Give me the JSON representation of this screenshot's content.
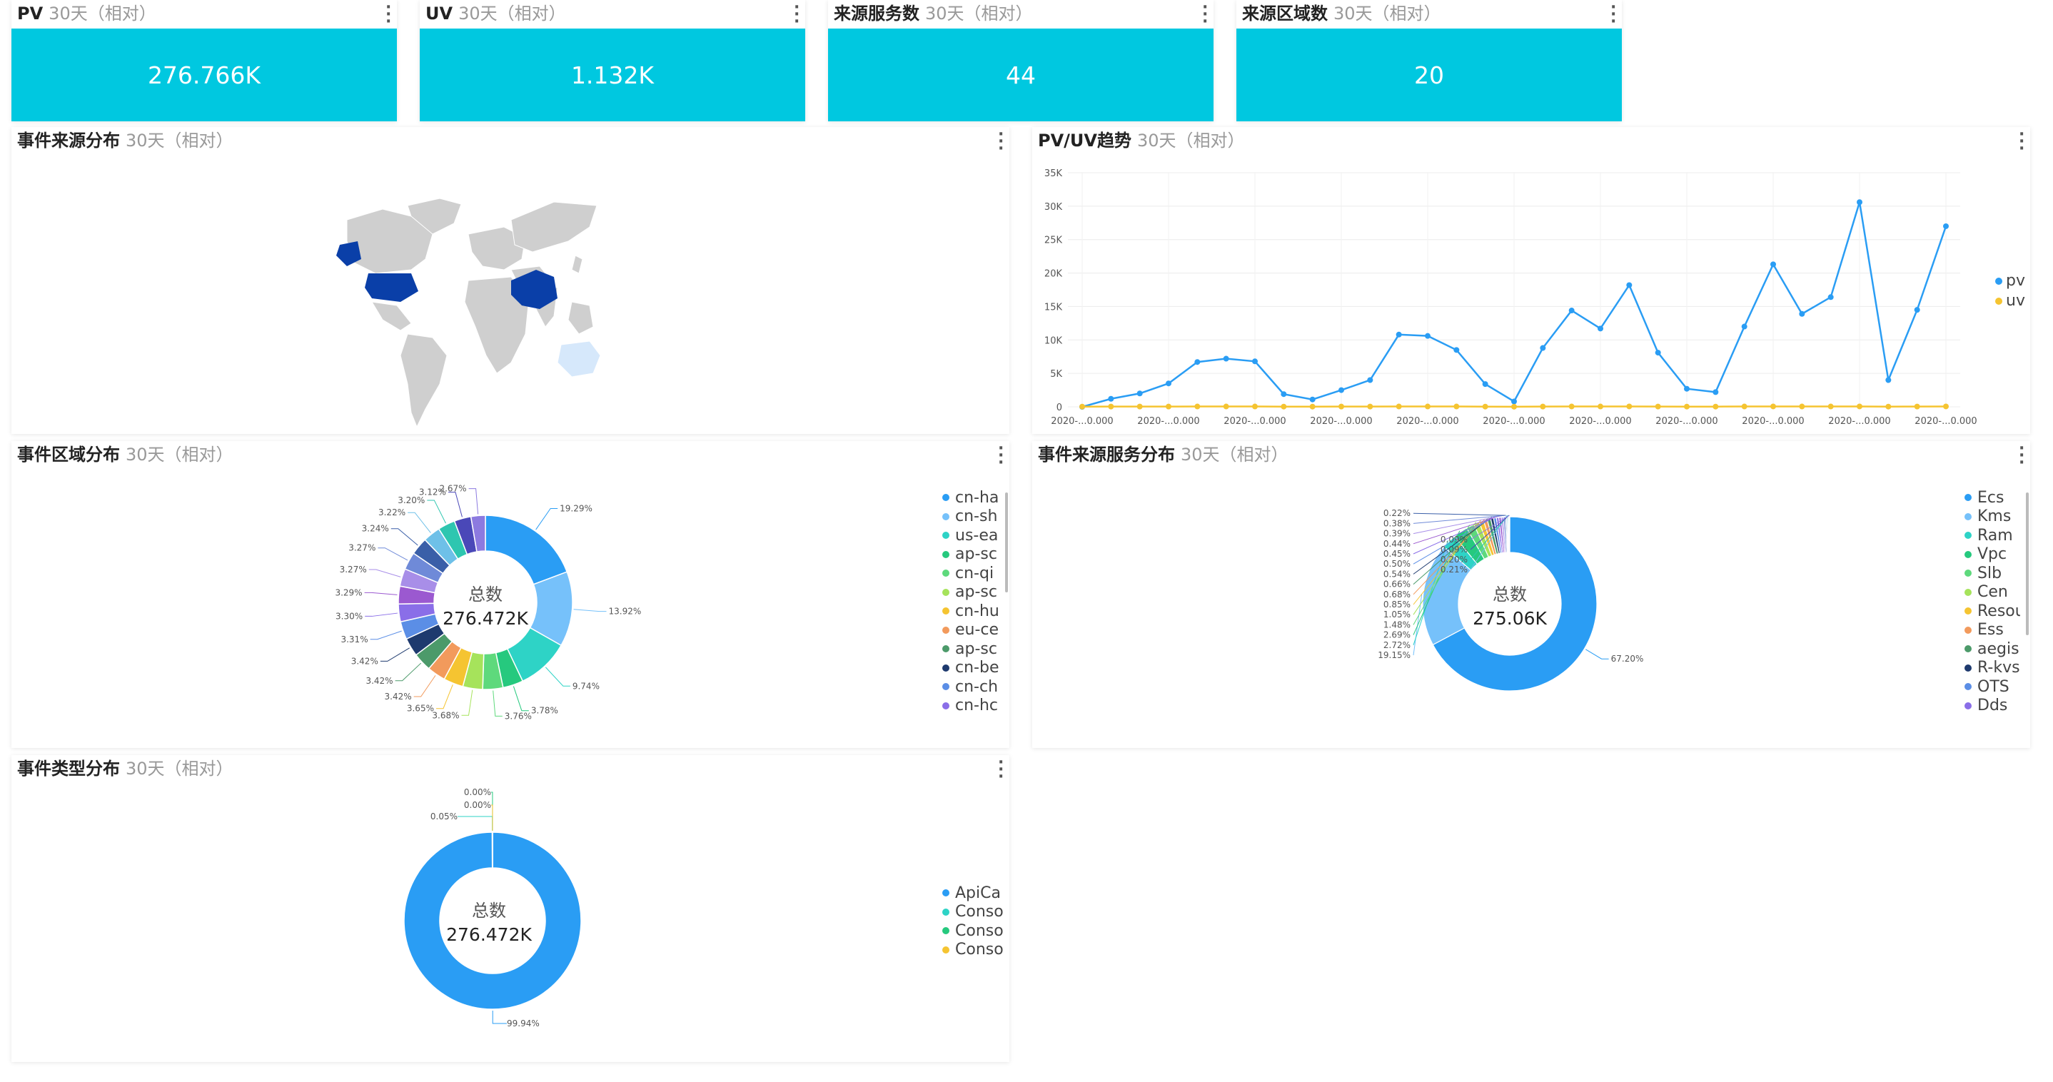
{
  "kpis": [
    {
      "title": "PV",
      "sub": "30天（相对）",
      "value": "276.766K"
    },
    {
      "title": "UV",
      "sub": "30天（相对）",
      "value": "1.132K"
    },
    {
      "title": "来源服务数",
      "sub": "30天（相对）",
      "value": "44"
    },
    {
      "title": "来源区域数",
      "sub": "30天（相对）",
      "value": "20"
    }
  ],
  "panels": {
    "map": {
      "title": "事件来源分布",
      "sub": "30天（相对）"
    },
    "trend": {
      "title": "PV/UV趋势",
      "sub": "30天（相对）"
    },
    "region": {
      "title": "事件区域分布",
      "sub": "30天（相对）",
      "center_label": "总数",
      "center_value": "276.472K"
    },
    "service": {
      "title": "事件来源服务分布",
      "sub": "30天（相对）",
      "center_label": "总数",
      "center_value": "275.06K"
    },
    "type": {
      "title": "事件类型分布",
      "sub": "30天（相对）",
      "center_label": "总数",
      "center_value": "276.472K"
    }
  },
  "colors": {
    "kpi": "#00c8e0",
    "pv": "#2a9df4",
    "uv": "#f5c431",
    "map_highlight": "#0a3fa8",
    "map_base": "#cfcfcf"
  },
  "chart_data": [
    {
      "type": "line",
      "name": "trend",
      "y_ticks": [
        "0",
        "5K",
        "10K",
        "15K",
        "20K",
        "25K",
        "30K",
        "35K"
      ],
      "x_ticks": [
        "2020-...0.000",
        "2020-...0.000",
        "2020-...0.000",
        "2020-...0.000",
        "2020-...0.000",
        "2020-...0.000",
        "2020-...0.000",
        "2020-...0.000",
        "2020-...0.000",
        "2020-...0.000",
        "2020-...0.000"
      ],
      "ylim": [
        0,
        35000
      ],
      "legend": "right",
      "series": [
        {
          "name": "pv",
          "values": [
            0,
            1200,
            2000,
            3500,
            6700,
            7200,
            6800,
            1900,
            1100,
            2500,
            4000,
            10800,
            10600,
            8500,
            3400,
            800,
            8800,
            14400,
            11700,
            18200,
            8100,
            2700,
            2200,
            12000,
            21300,
            13900,
            16400,
            30600,
            4000,
            14500,
            27000
          ]
        },
        {
          "name": "uv",
          "values": [
            30,
            40,
            40,
            40,
            50,
            50,
            50,
            30,
            30,
            40,
            40,
            50,
            50,
            50,
            30,
            20,
            40,
            50,
            50,
            60,
            40,
            30,
            30,
            50,
            60,
            50,
            50,
            60,
            30,
            40,
            60
          ]
        }
      ]
    },
    {
      "type": "pie",
      "name": "region",
      "legend": [
        "cn-ha",
        "cn-sh",
        "us-ea",
        "ap-sc",
        "cn-qi",
        "ap-sc",
        "cn-hu",
        "eu-ce",
        "ap-sc",
        "cn-be",
        "cn-ch",
        "cn-hc"
      ],
      "slices": [
        19.29,
        13.92,
        9.74,
        3.78,
        3.76,
        3.68,
        3.65,
        3.42,
        3.42,
        3.42,
        3.31,
        3.3,
        3.29,
        3.27,
        3.27,
        3.24,
        3.22,
        3.2,
        3.12,
        2.67
      ],
      "labels": [
        "19.29%",
        "13.92%",
        "9.74%",
        "3.78%",
        "3.76%",
        "3.68%",
        "3.65%",
        "3.42%",
        "3.42%",
        "3.42%",
        "3.31%",
        "3.30%",
        "3.29%",
        "3.27%",
        "3.27%",
        "3.24%",
        "3.22%",
        "3.20%",
        "3.12%",
        "2.67%"
      ]
    },
    {
      "type": "pie",
      "name": "service",
      "legend": [
        "Ecs",
        "Kms",
        "Ram",
        "Vpc",
        "Slb",
        "Cen",
        "Resou",
        "Ess",
        "aegis",
        "R-kvs",
        "OTS",
        "Dds"
      ],
      "slices": [
        67.2,
        19.15,
        2.72,
        2.69,
        1.48,
        1.05,
        0.85,
        0.68,
        0.66,
        0.54,
        0.5,
        0.45,
        0.44,
        0.39,
        0.38,
        0.22,
        0.21,
        0.2,
        0.09,
        0.09
      ],
      "labels": [
        "67.20%",
        "19.15%",
        "2.72%",
        "2.69%",
        "1.48%",
        "1.05%",
        "0.85%",
        "0.68%",
        "0.66%",
        "0.54%",
        "0.50%",
        "0.45%",
        "0.44%",
        "0.39%",
        "0.38%",
        "0.22%",
        "0.21%",
        "0.20%",
        "0.09%",
        "0.09%"
      ]
    },
    {
      "type": "pie",
      "name": "type",
      "legend": [
        "ApiCa",
        "Conso",
        "Conso",
        "Conso"
      ],
      "slices": [
        99.94,
        0.05,
        0.005,
        0.005
      ],
      "labels": [
        "99.94%",
        "0.05%",
        "0.00%",
        "0.00%"
      ]
    }
  ]
}
